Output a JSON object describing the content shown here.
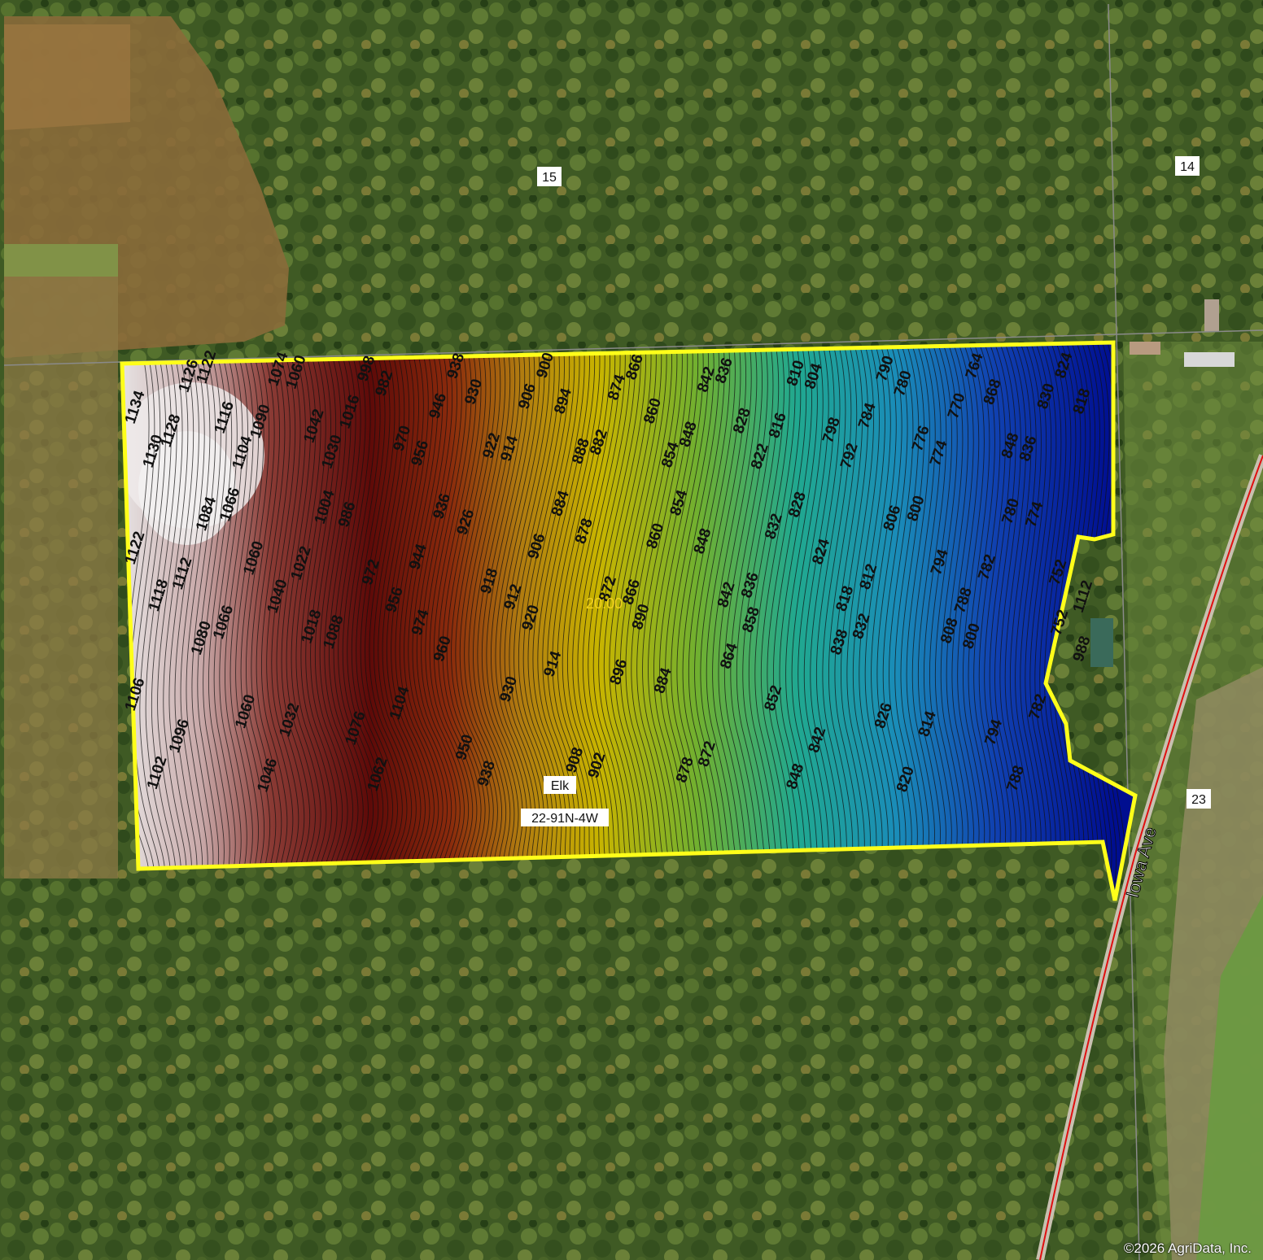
{
  "map": {
    "sections": [
      {
        "label": "15"
      },
      {
        "label": "14"
      },
      {
        "label": "23"
      }
    ],
    "township_name": "Elk",
    "township_code": "22-91N-4W",
    "contour_interval_label": "20.00",
    "road_name": "Iowa Ave",
    "copyright": "©2026 AgriData, Inc.",
    "colors": {
      "boundary": "#ffff1a",
      "road_line": "#e01010",
      "interval_label": "#f0d020",
      "elevation_high": "#e8e4e4",
      "elevation_mid_high": "#6a0e0a",
      "elevation_mid": "#c8b400",
      "elevation_mid_low": "#1aa8a0",
      "elevation_low": "#0010a0"
    },
    "contour_labels": [
      "1134",
      "1130",
      "1128",
      "1126",
      "1122",
      "1116",
      "1104",
      "1090",
      "1074",
      "1060",
      "1042",
      "1030",
      "1016",
      "998",
      "982",
      "970",
      "956",
      "946",
      "938",
      "930",
      "922",
      "914",
      "906",
      "900",
      "894",
      "888",
      "882",
      "874",
      "866",
      "860",
      "854",
      "848",
      "842",
      "836",
      "828",
      "822",
      "816",
      "810",
      "804",
      "798",
      "792",
      "784",
      "790",
      "780",
      "776",
      "774",
      "770",
      "764",
      "868",
      "848",
      "836",
      "830",
      "824",
      "818",
      "1122",
      "1118",
      "1112",
      "1084",
      "1066",
      "1060",
      "1040",
      "1022",
      "1004",
      "986",
      "972",
      "956",
      "944",
      "936",
      "926",
      "918",
      "912",
      "906",
      "884",
      "878",
      "872",
      "866",
      "860",
      "854",
      "848",
      "842",
      "836",
      "832",
      "828",
      "824",
      "818",
      "812",
      "806",
      "800",
      "794",
      "788",
      "782",
      "780",
      "774",
      "752",
      "1112",
      "1106",
      "1102",
      "1096",
      "1080",
      "1066",
      "1060",
      "1046",
      "1032",
      "1018",
      "1088",
      "1076",
      "1062",
      "1104",
      "974",
      "960",
      "950",
      "938",
      "930",
      "920",
      "914",
      "908",
      "902",
      "896",
      "890",
      "884",
      "878",
      "872",
      "864",
      "858",
      "852",
      "848",
      "842",
      "838",
      "832",
      "826",
      "820",
      "814",
      "808",
      "800",
      "794",
      "788",
      "782",
      "752",
      "988"
    ]
  }
}
